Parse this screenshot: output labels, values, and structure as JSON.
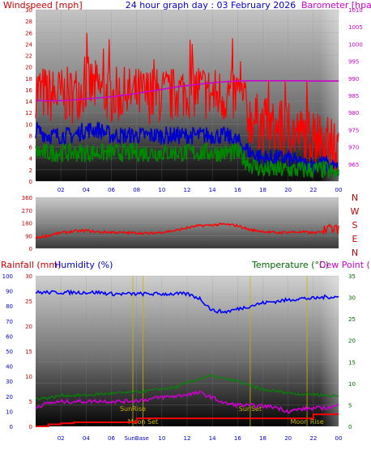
{
  "header": {
    "left": "Windspeed [mph]",
    "center": "24 hour graph day : 03 February 2026",
    "right": "Barometer [hpa]"
  },
  "mid_header": {
    "rainfall": "Rainfall (mm)",
    "humidity": "Humidity (%)",
    "temperature": "Temperature (°C)",
    "dewpoint": "Dew Point (°C"
  },
  "colors": {
    "wind_gust": "#ff0000",
    "wind_avg": "#0000cc",
    "wind_low": "#008800",
    "barometer": "#cc00cc",
    "direction": "#ff0000",
    "humidity": "#0000ff",
    "temperature": "#008800",
    "dewpoint": "#cc00cc",
    "rainfall": "#ff0000",
    "events": "#c8b400",
    "label_red": "#cc0000",
    "label_blue": "#0000cc",
    "label_green": "#006600",
    "label_magenta": "#cc00cc"
  },
  "x_ticks": [
    "02",
    "04",
    "06",
    "08",
    "10",
    "12",
    "14",
    "16",
    "18",
    "20",
    "22",
    "00"
  ],
  "x_bottom_ticks": [
    "02",
    "04",
    "06",
    "",
    "10",
    "12",
    "14",
    "16",
    "18",
    "20",
    "22",
    "00"
  ],
  "events": {
    "sunrise": "SunRise",
    "sunset": "SunSet",
    "moonset": "Moon Set",
    "moonrise": "Moon Rise",
    "sunbase": "SunBase"
  },
  "chart_data": [
    {
      "type": "line",
      "title": "24 hour graph day : 03 February 2026",
      "xlabel": "",
      "ylabel": "Windspeed [mph]",
      "y2label": "Barometer [hpa]",
      "x": [
        "00",
        "01",
        "02",
        "03",
        "04",
        "05",
        "06",
        "07",
        "08",
        "09",
        "10",
        "11",
        "12",
        "13",
        "14",
        "15",
        "16",
        "17",
        "18",
        "19",
        "20",
        "21",
        "22",
        "23",
        "00"
      ],
      "ylim": [
        0,
        30
      ],
      "y2lim": [
        960,
        1010
      ],
      "y_ticks": [
        0,
        2,
        4,
        6,
        8,
        10,
        12,
        14,
        16,
        18,
        20,
        22,
        24,
        26,
        28,
        30
      ],
      "y2_ticks": [
        965,
        970,
        975,
        980,
        985,
        990,
        995,
        1000,
        1005,
        1010
      ],
      "series": [
        {
          "name": "",
          "values": [
            16,
            15,
            15,
            15,
            17,
            16,
            15,
            15,
            15,
            15,
            15,
            15,
            16,
            16,
            15,
            15,
            15,
            11,
            10,
            9,
            9,
            8,
            8,
            7,
            5
          ]
        },
        {
          "name": "",
          "values": [
            9,
            8,
            8,
            8,
            9,
            9,
            8,
            8,
            8,
            8,
            8,
            8,
            8,
            8,
            8,
            8,
            7,
            5,
            4,
            4,
            4,
            3,
            3,
            3,
            2
          ]
        },
        {
          "name": "",
          "values": [
            5,
            5,
            5,
            5,
            5,
            5,
            5,
            5,
            5,
            5,
            5,
            5,
            5,
            5,
            5,
            5,
            5,
            3,
            2,
            2,
            2,
            2,
            2,
            2,
            1
          ]
        },
        {
          "name": "",
          "axis": "right",
          "values": [
            983.5,
            983.5,
            983.5,
            983.7,
            984,
            984.3,
            984.6,
            985.1,
            985.6,
            986.2,
            986.8,
            987.4,
            987.9,
            988.3,
            988.7,
            989,
            989.2,
            989.3,
            989.3,
            989.3,
            989.3,
            989.3,
            989.2,
            989.2,
            989.2
          ]
        }
      ]
    },
    {
      "type": "line",
      "title": "",
      "ylabel": "",
      "y_ticks": [
        0,
        90,
        180,
        270,
        360
      ],
      "ylim": [
        0,
        360
      ],
      "compass": [
        "N",
        "W",
        "S",
        "E",
        "N"
      ],
      "x": [
        "00",
        "01",
        "02",
        "03",
        "04",
        "05",
        "06",
        "07",
        "08",
        "09",
        "10",
        "11",
        "12",
        "13",
        "14",
        "15",
        "16",
        "17",
        "18",
        "19",
        "20",
        "21",
        "22",
        "23",
        "00"
      ],
      "series": [
        {
          "name": "",
          "values": [
            75,
            90,
            110,
            120,
            125,
            115,
            115,
            110,
            110,
            105,
            115,
            125,
            145,
            160,
            165,
            170,
            160,
            130,
            120,
            110,
            115,
            115,
            110,
            115,
            110
          ]
        }
      ]
    },
    {
      "type": "line",
      "title": "",
      "ylabel": "Rainfall (mm)",
      "x": [
        "00",
        "01",
        "02",
        "03",
        "04",
        "05",
        "06",
        "07",
        "08",
        "09",
        "10",
        "11",
        "12",
        "13",
        "14",
        "15",
        "16",
        "17",
        "18",
        "19",
        "20",
        "21",
        "22",
        "23",
        "00"
      ],
      "rain_ticks": [
        0,
        5,
        10,
        15,
        20,
        25,
        30
      ],
      "humidity_ticks": [
        0,
        10,
        20,
        30,
        40,
        50,
        60,
        70,
        80,
        90,
        100
      ],
      "temp_ticks": [
        0,
        5,
        10,
        15,
        20,
        25,
        30,
        35
      ],
      "series": [
        {
          "name": "Humidity (%)",
          "values": [
            89,
            89,
            89,
            89,
            89,
            89,
            88,
            88,
            88,
            88,
            88,
            88,
            88,
            85,
            77,
            76,
            78,
            80,
            82,
            83,
            84,
            85,
            85,
            86,
            86
          ]
        },
        {
          "name": "Temperature (°C)",
          "values": [
            6.5,
            6.6,
            7.2,
            7.2,
            7.2,
            7.5,
            7.6,
            7.8,
            8.0,
            8.3,
            8.7,
            9.0,
            10.1,
            11.1,
            11.7,
            11.0,
            10.5,
            9.4,
            8.5,
            8.2,
            7.8,
            7.5,
            7.5,
            7.2,
            7.0
          ]
        },
        {
          "name": "Dew Point (°C",
          "values": [
            4.5,
            5.4,
            5.7,
            5.8,
            5.8,
            5.9,
            5.8,
            5.8,
            6.0,
            6.3,
            6.8,
            7.0,
            7.4,
            7.8,
            6.7,
            5.3,
            5.0,
            4.8,
            4.7,
            4.5,
            3.5,
            4.0,
            4.2,
            4.3,
            4.8
          ]
        },
        {
          "name": "Rainfall (mm)",
          "values": [
            0,
            0.4,
            0.6,
            0.8,
            0.8,
            0.8,
            0.8,
            0.8,
            1.6,
            1.6,
            1.6,
            1.6,
            1.6,
            1.6,
            1.6,
            1.6,
            1.6,
            1.6,
            1.6,
            1.6,
            1.6,
            1.6,
            2.4,
            2.4,
            2.4
          ]
        }
      ]
    }
  ]
}
